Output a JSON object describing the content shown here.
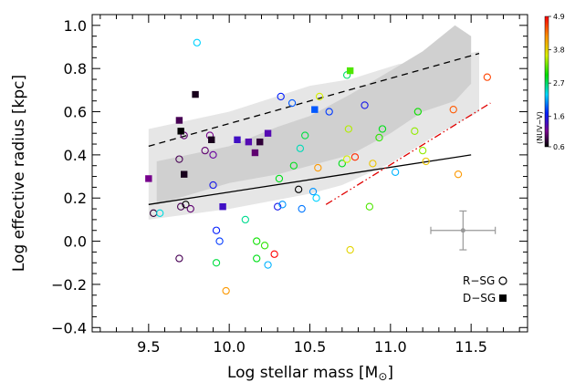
{
  "chart_data": {
    "type": "scatter",
    "xlabel": "Log stellar mass [M",
    "xlabel_unit": "⊙",
    "xlabel_close": "]",
    "ylabel": "Log effective radius [kpc]",
    "xlim": [
      9.15,
      11.85
    ],
    "ylim": [
      -0.42,
      1.05
    ],
    "xticks": [
      9.5,
      10.0,
      10.5,
      11.0,
      11.5
    ],
    "xtick_labels": [
      "9.5",
      "10.0",
      "10.5",
      "11.0",
      "11.5"
    ],
    "yticks": [
      -0.4,
      -0.2,
      0.0,
      0.2,
      0.4,
      0.6,
      0.8,
      1.0
    ],
    "ytick_labels": [
      "−0.4",
      "−0.2",
      "0.0",
      "0.2",
      "0.4",
      "0.6",
      "0.8",
      "1.0"
    ],
    "colorbar": {
      "label": "(NUV−V)",
      "range": [
        0.6,
        4.9
      ],
      "ticks": [
        0.6,
        1.6,
        2.7,
        3.8,
        4.9
      ],
      "tick_labels": [
        "0.6",
        "1.6",
        "2.7",
        "3.8",
        "4.9"
      ]
    },
    "legend": {
      "position": "bottom-right",
      "entries": [
        {
          "label": "R−SG",
          "marker": "open-circle"
        },
        {
          "label": "D−SG",
          "marker": "filled-square"
        }
      ]
    },
    "bands": {
      "light": {
        "x": [
          9.5,
          10.0,
          10.5,
          10.75,
          11.05,
          11.35,
          11.55,
          11.55,
          11.3,
          11.0,
          10.7,
          10.5,
          10.0,
          9.5
        ],
        "y": [
          0.52,
          0.6,
          0.72,
          0.75,
          0.82,
          0.85,
          0.88,
          0.6,
          0.5,
          0.36,
          0.26,
          0.22,
          0.15,
          0.1
        ]
      },
      "dark": {
        "x": [
          9.55,
          10.0,
          10.3,
          10.5,
          10.75,
          11.0,
          11.2,
          11.4,
          11.5,
          11.5,
          11.4,
          11.2,
          11.0,
          10.75,
          10.5,
          10.3,
          10.0,
          9.55
        ],
        "y": [
          0.37,
          0.44,
          0.53,
          0.58,
          0.68,
          0.79,
          0.88,
          1.0,
          0.95,
          0.73,
          0.65,
          0.6,
          0.5,
          0.4,
          0.35,
          0.31,
          0.27,
          0.17
        ]
      }
    },
    "lines": [
      {
        "style": "dashed",
        "color": "#000000",
        "x": [
          9.5,
          11.55
        ],
        "y": [
          0.44,
          0.87
        ]
      },
      {
        "style": "solid",
        "color": "#000000",
        "x": [
          9.5,
          11.5
        ],
        "y": [
          0.17,
          0.4
        ]
      },
      {
        "style": "dash-dot-dot",
        "color": "#e00000",
        "x": [
          10.6,
          11.62
        ],
        "y": [
          0.17,
          0.64
        ]
      }
    ],
    "error_bar": {
      "x": 11.45,
      "y": 0.05,
      "xerr": 0.2,
      "yerr": 0.09
    },
    "series": [
      {
        "marker": "open-circle",
        "points": [
          {
            "x": 9.8,
            "y": 0.92,
            "c": 2.3
          },
          {
            "x": 9.53,
            "y": 0.13,
            "c": 0.8
          },
          {
            "x": 9.57,
            "y": 0.13,
            "c": 2.4
          },
          {
            "x": 9.69,
            "y": 0.38,
            "c": 0.9
          },
          {
            "x": 9.7,
            "y": 0.16,
            "c": 0.9
          },
          {
            "x": 9.72,
            "y": 0.49,
            "c": 1.0
          },
          {
            "x": 9.73,
            "y": 0.17,
            "c": 0.6
          },
          {
            "x": 9.76,
            "y": 0.15,
            "c": 1.0
          },
          {
            "x": 9.85,
            "y": 0.42,
            "c": 1.0
          },
          {
            "x": 9.9,
            "y": 0.4,
            "c": 1.2
          },
          {
            "x": 9.88,
            "y": 0.49,
            "c": 1.1
          },
          {
            "x": 9.9,
            "y": 0.26,
            "c": 1.6
          },
          {
            "x": 9.92,
            "y": 0.05,
            "c": 1.7
          },
          {
            "x": 9.94,
            "y": 0.0,
            "c": 1.8
          },
          {
            "x": 9.92,
            "y": -0.1,
            "c": 2.8
          },
          {
            "x": 9.69,
            "y": -0.08,
            "c": 0.9
          },
          {
            "x": 9.98,
            "y": -0.23,
            "c": 4.2
          },
          {
            "x": 10.1,
            "y": 0.1,
            "c": 2.6
          },
          {
            "x": 10.17,
            "y": 0.0,
            "c": 3.0
          },
          {
            "x": 10.17,
            "y": -0.08,
            "c": 2.9
          },
          {
            "x": 10.22,
            "y": -0.02,
            "c": 3.1
          },
          {
            "x": 10.24,
            "y": -0.11,
            "c": 2.2
          },
          {
            "x": 10.28,
            "y": -0.06,
            "c": 4.9
          },
          {
            "x": 10.3,
            "y": 0.16,
            "c": 1.6
          },
          {
            "x": 10.33,
            "y": 0.17,
            "c": 2.1
          },
          {
            "x": 10.31,
            "y": 0.29,
            "c": 2.9
          },
          {
            "x": 10.32,
            "y": 0.67,
            "c": 1.7
          },
          {
            "x": 10.39,
            "y": 0.64,
            "c": 1.9
          },
          {
            "x": 10.43,
            "y": 0.24,
            "c": 0.6
          },
          {
            "x": 10.4,
            "y": 0.35,
            "c": 2.9
          },
          {
            "x": 10.44,
            "y": 0.43,
            "c": 2.5
          },
          {
            "x": 10.45,
            "y": 0.15,
            "c": 2.0
          },
          {
            "x": 10.47,
            "y": 0.49,
            "c": 2.8
          },
          {
            "x": 10.52,
            "y": 0.23,
            "c": 2.1
          },
          {
            "x": 10.54,
            "y": 0.2,
            "c": 2.3
          },
          {
            "x": 10.56,
            "y": 0.67,
            "c": 3.6
          },
          {
            "x": 10.55,
            "y": 0.34,
            "c": 4.2
          },
          {
            "x": 10.62,
            "y": 0.6,
            "c": 1.8
          },
          {
            "x": 10.7,
            "y": 0.36,
            "c": 2.9
          },
          {
            "x": 10.73,
            "y": 0.38,
            "c": 3.6
          },
          {
            "x": 10.74,
            "y": 0.52,
            "c": 3.5
          },
          {
            "x": 10.73,
            "y": 0.77,
            "c": 2.7
          },
          {
            "x": 10.75,
            "y": -0.04,
            "c": 3.8
          },
          {
            "x": 10.78,
            "y": 0.39,
            "c": 4.7
          },
          {
            "x": 10.84,
            "y": 0.63,
            "c": 1.6
          },
          {
            "x": 10.87,
            "y": 0.16,
            "c": 3.2
          },
          {
            "x": 10.89,
            "y": 0.36,
            "c": 3.9
          },
          {
            "x": 10.93,
            "y": 0.48,
            "c": 3.1
          },
          {
            "x": 10.95,
            "y": 0.52,
            "c": 2.9
          },
          {
            "x": 11.03,
            "y": 0.32,
            "c": 2.2
          },
          {
            "x": 11.15,
            "y": 0.51,
            "c": 3.4
          },
          {
            "x": 11.17,
            "y": 0.6,
            "c": 3.0
          },
          {
            "x": 11.2,
            "y": 0.42,
            "c": 3.4
          },
          {
            "x": 11.22,
            "y": 0.37,
            "c": 3.9
          },
          {
            "x": 11.39,
            "y": 0.61,
            "c": 4.5
          },
          {
            "x": 11.42,
            "y": 0.31,
            "c": 4.2
          },
          {
            "x": 11.6,
            "y": 0.76,
            "c": 4.6
          }
        ]
      },
      {
        "marker": "filled-square",
        "points": [
          {
            "x": 9.5,
            "y": 0.29,
            "c": 1.1
          },
          {
            "x": 9.69,
            "y": 0.56,
            "c": 0.9
          },
          {
            "x": 9.7,
            "y": 0.51,
            "c": 0.6
          },
          {
            "x": 9.72,
            "y": 0.31,
            "c": 0.7
          },
          {
            "x": 9.79,
            "y": 0.68,
            "c": 0.7
          },
          {
            "x": 9.89,
            "y": 0.47,
            "c": 0.7
          },
          {
            "x": 9.96,
            "y": 0.16,
            "c": 1.4
          },
          {
            "x": 10.05,
            "y": 0.47,
            "c": 1.4
          },
          {
            "x": 10.12,
            "y": 0.46,
            "c": 1.3
          },
          {
            "x": 10.16,
            "y": 0.41,
            "c": 1.0
          },
          {
            "x": 10.19,
            "y": 0.46,
            "c": 0.8
          },
          {
            "x": 10.24,
            "y": 0.5,
            "c": 1.3
          },
          {
            "x": 10.53,
            "y": 0.61,
            "c": 1.9
          },
          {
            "x": 10.75,
            "y": 0.79,
            "c": 3.2
          }
        ]
      }
    ]
  }
}
